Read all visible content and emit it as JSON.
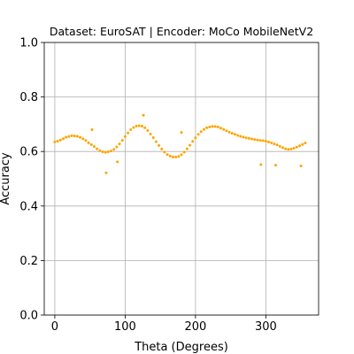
{
  "chart_data": {
    "type": "scatter",
    "title": "Dataset: EuroSAT | Encoder: MoCo MobileNetV2",
    "xlabel": "Theta (Degrees)",
    "ylabel": "Accuracy",
    "xlim": [
      -15,
      375
    ],
    "ylim": [
      0.0,
      1.0
    ],
    "xticks": [
      0,
      100,
      200,
      300
    ],
    "yticks": [
      0.0,
      0.2,
      0.4,
      0.6,
      0.8,
      1.0
    ],
    "xtick_labels": [
      "0",
      "100",
      "200",
      "300"
    ],
    "ytick_labels": [
      "0.0",
      "0.2",
      "0.4",
      "0.6",
      "0.8",
      "1.0"
    ],
    "grid": true,
    "marker_color": "#FFA500",
    "series": [
      {
        "x": [
          0,
          4,
          8,
          12,
          16,
          20,
          24,
          28,
          32,
          36,
          40,
          44,
          48,
          52,
          56,
          60,
          64,
          68,
          72,
          76,
          80,
          84,
          88,
          92,
          96,
          100,
          104,
          108,
          112,
          116,
          120,
          124,
          128,
          132,
          136,
          140,
          144,
          148,
          152,
          156,
          160,
          164,
          168,
          172,
          176,
          180,
          184,
          188,
          192,
          196,
          200,
          204,
          208,
          212,
          216,
          220,
          224,
          228,
          232,
          236,
          240,
          244,
          248,
          252,
          256,
          260,
          264,
          268,
          272,
          276,
          280,
          284,
          288,
          292,
          296,
          300,
          304,
          308,
          312,
          316,
          320,
          324,
          328,
          332,
          336,
          340,
          344,
          348,
          352,
          356,
          53,
          73,
          89,
          126,
          180,
          293,
          314,
          350
        ],
        "y": [
          0.635,
          0.638,
          0.642,
          0.647,
          0.652,
          0.655,
          0.658,
          0.657,
          0.656,
          0.652,
          0.647,
          0.641,
          0.632,
          0.625,
          0.618,
          0.61,
          0.603,
          0.599,
          0.597,
          0.599,
          0.602,
          0.608,
          0.617,
          0.628,
          0.641,
          0.655,
          0.668,
          0.68,
          0.688,
          0.693,
          0.695,
          0.693,
          0.687,
          0.677,
          0.664,
          0.651,
          0.636,
          0.622,
          0.609,
          0.598,
          0.589,
          0.583,
          0.58,
          0.58,
          0.582,
          0.588,
          0.598,
          0.61,
          0.623,
          0.637,
          0.65,
          0.663,
          0.673,
          0.681,
          0.687,
          0.69,
          0.692,
          0.692,
          0.69,
          0.686,
          0.681,
          0.676,
          0.671,
          0.667,
          0.663,
          0.659,
          0.656,
          0.653,
          0.65,
          0.648,
          0.646,
          0.644,
          0.642,
          0.641,
          0.64,
          0.638,
          0.635,
          0.632,
          0.628,
          0.624,
          0.619,
          0.614,
          0.61,
          0.608,
          0.609,
          0.612,
          0.616,
          0.621,
          0.626,
          0.631,
          0.68,
          0.522,
          0.562,
          0.733,
          0.67,
          0.552,
          0.55,
          0.547
        ]
      }
    ]
  }
}
